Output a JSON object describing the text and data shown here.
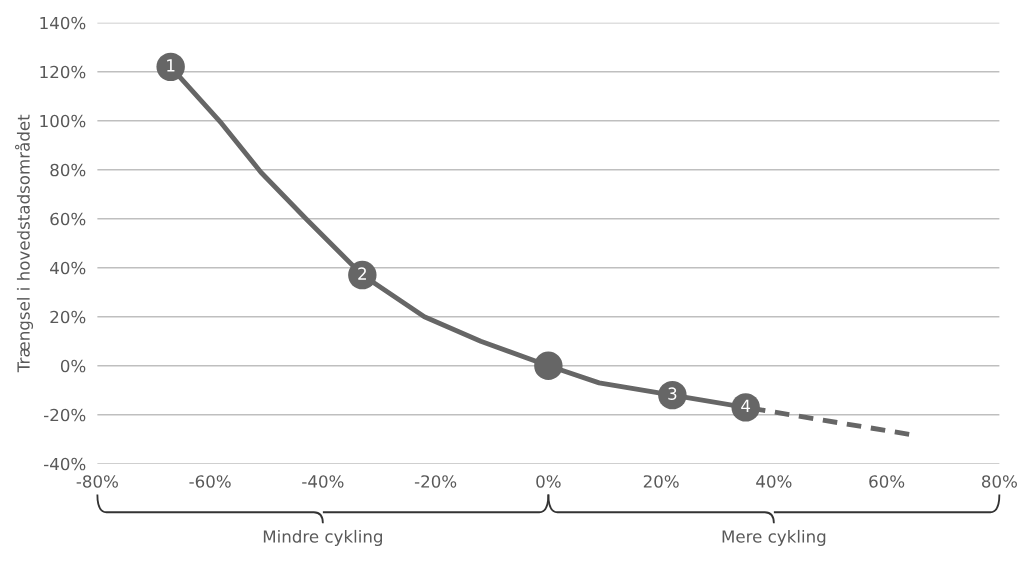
{
  "chart_data": {
    "type": "line",
    "ylabel": "Trængsel i hovedstadsområdet",
    "xlim": [
      -80,
      80
    ],
    "xticks": [
      {
        "value": -80,
        "label": "-80%"
      },
      {
        "value": -60,
        "label": "-60%"
      },
      {
        "value": -40,
        "label": "-40%"
      },
      {
        "value": -20,
        "label": "-20%"
      },
      {
        "value": 0,
        "label": "0%"
      },
      {
        "value": 20,
        "label": "20%"
      },
      {
        "value": 40,
        "label": "40%"
      },
      {
        "value": 60,
        "label": "60%"
      },
      {
        "value": 80,
        "label": "80%"
      }
    ],
    "ylim": [
      -40,
      140
    ],
    "yticks": [
      {
        "value": -40,
        "label": "-40%"
      },
      {
        "value": -20,
        "label": "-20%"
      },
      {
        "value": 0,
        "label": "0%"
      },
      {
        "value": 20,
        "label": "20%"
      },
      {
        "value": 40,
        "label": "40%"
      },
      {
        "value": 60,
        "label": "60%"
      },
      {
        "value": 80,
        "label": "80%"
      },
      {
        "value": 100,
        "label": "100%"
      },
      {
        "value": 120,
        "label": "120%"
      },
      {
        "value": 140,
        "label": "140%"
      }
    ],
    "grid": "y",
    "series": [
      {
        "color": "#666666",
        "x": [
          -67,
          -58,
          -51,
          -43,
          -33,
          -22,
          -12,
          0,
          9,
          22,
          35
        ],
        "values": [
          122,
          99,
          79,
          60,
          37,
          20,
          10,
          0,
          -7,
          -12,
          -17
        ],
        "marker": "none",
        "line_style": "solid"
      },
      {
        "type": "scatter",
        "color": "#666666",
        "x": [
          -67,
          -33,
          0,
          22,
          35
        ],
        "values": [
          122,
          37,
          0,
          -12,
          -17
        ],
        "marker": "circle"
      },
      {
        "color": "#666666",
        "x": [
          35,
          64
        ],
        "values": [
          -17,
          -28
        ],
        "marker": "none",
        "line_style": "dashed"
      }
    ],
    "annotations": [
      {
        "text": "1",
        "x": -67,
        "y": 122
      },
      {
        "text": "2",
        "x": -33,
        "y": 37
      },
      {
        "text": "3",
        "x": 22,
        "y": -12
      },
      {
        "text": "4",
        "x": 35,
        "y": -17
      },
      "Mindre cykling",
      "Mere cykling"
    ]
  }
}
